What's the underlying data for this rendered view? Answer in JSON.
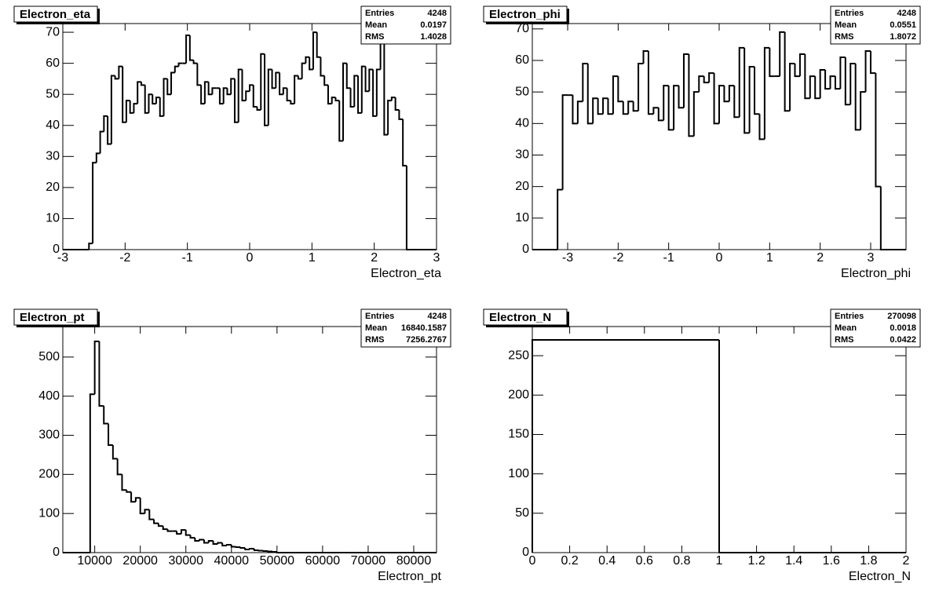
{
  "chart_data": [
    {
      "type": "histogram",
      "title": "Electron_eta",
      "xlabel": "Electron_eta",
      "color": "#000000",
      "stats": [
        {
          "label": "Entries",
          "value": 4248
        },
        {
          "label": "Mean",
          "value": 0.0197
        },
        {
          "label": "RMS",
          "value": 1.4028
        }
      ],
      "bins": [
        -3,
        -2.94,
        -2.88,
        -2.82,
        -2.76,
        -2.7,
        -2.64,
        -2.58,
        -2.52,
        -2.46,
        -2.4,
        -2.34,
        -2.28,
        -2.22,
        -2.16,
        -2.1,
        -2.04,
        -1.98,
        -1.92,
        -1.86,
        -1.8,
        -1.74,
        -1.68,
        -1.62,
        -1.56,
        -1.5,
        -1.44,
        -1.38,
        -1.32,
        -1.26,
        -1.2,
        -1.14,
        -1.08,
        -1.02,
        -0.96,
        -0.9,
        -0.84,
        -0.78,
        -0.72,
        -0.66,
        -0.6,
        -0.54,
        -0.48,
        -0.42,
        -0.36,
        -0.3,
        -0.24,
        -0.18,
        -0.12,
        -0.06,
        0,
        0.06,
        0.12,
        0.18,
        0.24,
        0.3,
        0.36,
        0.42,
        0.48,
        0.54,
        0.6,
        0.66,
        0.72,
        0.78,
        0.84,
        0.9,
        0.96,
        1.02,
        1.08,
        1.14,
        1.2,
        1.26,
        1.32,
        1.38,
        1.44,
        1.5,
        1.56,
        1.62,
        1.68,
        1.74,
        1.8,
        1.86,
        1.92,
        1.98,
        2.04,
        2.1,
        2.16,
        2.22,
        2.28,
        2.34,
        2.4,
        2.46,
        2.52,
        2.58,
        2.64,
        2.7,
        2.76,
        2.82,
        2.88,
        2.94,
        3
      ],
      "values": [
        0,
        0,
        0,
        0,
        0,
        0,
        0,
        2,
        28,
        31,
        38,
        43,
        34,
        56,
        55,
        59,
        41,
        48,
        44,
        47,
        54,
        53,
        44,
        50,
        47,
        49,
        43,
        55,
        50,
        57,
        59,
        60,
        60,
        69,
        61,
        60,
        53,
        47,
        54,
        50,
        52,
        52,
        47,
        52,
        50,
        55,
        41,
        58,
        48,
        51,
        53,
        46,
        45,
        63,
        40,
        58,
        52,
        57,
        50,
        52,
        48,
        47,
        56,
        55,
        60,
        62,
        58,
        70,
        62,
        56,
        53,
        47,
        49,
        48,
        35,
        60,
        52,
        46,
        56,
        44,
        59,
        51,
        58,
        43,
        58,
        68,
        37,
        48,
        49,
        45,
        42,
        27,
        0,
        0,
        0,
        0,
        0,
        0,
        0,
        0
      ],
      "xlim": [
        -3,
        3
      ],
      "ylim": [
        0,
        72.8
      ],
      "xticks": [
        -3,
        -2,
        -1,
        0,
        1,
        2,
        3
      ],
      "yticks": [
        0,
        10,
        20,
        30,
        40,
        50,
        60,
        70
      ]
    },
    {
      "type": "histogram",
      "title": "Electron_phi",
      "xlabel": "Electron_phi",
      "color": "#000000",
      "stats": [
        {
          "label": "Entries",
          "value": 4248
        },
        {
          "label": "Mean",
          "value": 0.0551
        },
        {
          "label": "RMS",
          "value": 1.8072
        }
      ],
      "bins": [
        -3.7,
        -3.6,
        -3.5,
        -3.4,
        -3.3,
        -3.2,
        -3.1,
        -3,
        -2.9,
        -2.8,
        -2.7,
        -2.6,
        -2.5,
        -2.4,
        -2.3,
        -2.2,
        -2.1,
        -2,
        -1.9,
        -1.8,
        -1.7,
        -1.6,
        -1.5,
        -1.4,
        -1.3,
        -1.2,
        -1.1,
        -1,
        -0.9,
        -0.8,
        -0.7,
        -0.6,
        -0.5,
        -0.4,
        -0.3,
        -0.2,
        -0.1,
        0,
        0.1,
        0.2,
        0.3,
        0.4,
        0.5,
        0.6,
        0.7,
        0.8,
        0.9,
        1,
        1.1,
        1.2,
        1.3,
        1.4,
        1.5,
        1.6,
        1.7,
        1.8,
        1.9,
        2,
        2.1,
        2.2,
        2.3,
        2.4,
        2.5,
        2.6,
        2.7,
        2.8,
        2.9,
        3,
        3.1,
        3.2,
        3.3,
        3.4,
        3.5,
        3.6,
        3.7
      ],
      "values": [
        0,
        0,
        0,
        0,
        0,
        19,
        49,
        49,
        40,
        47,
        59,
        40,
        48,
        43,
        48,
        43,
        55,
        47,
        43,
        47,
        44,
        59,
        63,
        43,
        45,
        41,
        52,
        38,
        52,
        45,
        62,
        36,
        50,
        55,
        53,
        56,
        40,
        52,
        47,
        52,
        42,
        64,
        37,
        58,
        43,
        35,
        64,
        55,
        55,
        69,
        44,
        59,
        55,
        62,
        48,
        55,
        48,
        57,
        51,
        55,
        51,
        61,
        46,
        59,
        38,
        50,
        63,
        56,
        20,
        0,
        0,
        0,
        0,
        0
      ],
      "xlim": [
        -3.7,
        3.7
      ],
      "ylim": [
        0,
        71.7
      ],
      "xticks": [
        -3,
        -2,
        -1,
        0,
        1,
        2,
        3
      ],
      "yticks": [
        0,
        10,
        20,
        30,
        40,
        50,
        60,
        70
      ]
    },
    {
      "type": "histogram",
      "title": "Electron_pt",
      "xlabel": "Electron_pt",
      "color": "#000000",
      "stats": [
        {
          "label": "Entries",
          "value": 4248
        },
        {
          "label": "Mean",
          "value": 16840.1587
        },
        {
          "label": "RMS",
          "value": 7256.2767
        }
      ],
      "bins": [
        3000,
        4000,
        5000,
        6000,
        7000,
        8000,
        9000,
        10000,
        11000,
        12000,
        13000,
        14000,
        15000,
        16000,
        17000,
        18000,
        19000,
        20000,
        21000,
        22000,
        23000,
        24000,
        25000,
        26000,
        27000,
        28000,
        29000,
        30000,
        31000,
        32000,
        33000,
        34000,
        35000,
        36000,
        37000,
        38000,
        39000,
        40000,
        41000,
        42000,
        43000,
        44000,
        45000,
        46000,
        47000,
        48000,
        49000,
        50000,
        51000,
        52000,
        53000,
        54000,
        55000,
        56000,
        57000,
        58000,
        59000,
        60000,
        61000,
        62000,
        63000,
        64000,
        65000,
        66000,
        67000,
        68000,
        69000,
        70000,
        71000,
        72000,
        73000,
        74000,
        75000,
        76000,
        77000,
        78000,
        79000,
        80000,
        81000,
        82000,
        83000,
        84000,
        85000
      ],
      "values": [
        0,
        0,
        0,
        0,
        0,
        0,
        405,
        540,
        375,
        330,
        275,
        240,
        200,
        160,
        155,
        130,
        140,
        100,
        110,
        85,
        75,
        68,
        60,
        55,
        55,
        48,
        58,
        45,
        38,
        30,
        33,
        25,
        30,
        22,
        25,
        18,
        20,
        15,
        14,
        12,
        8,
        10,
        6,
        5,
        4,
        3,
        2,
        0,
        0,
        0,
        0,
        0,
        0,
        0,
        0,
        0,
        0,
        0,
        0,
        0,
        0,
        0,
        0,
        0,
        0,
        0,
        0,
        0,
        0,
        0,
        0,
        0,
        0,
        0,
        0,
        0,
        0,
        0,
        0,
        0,
        0,
        0
      ],
      "xlim": [
        3000,
        85000
      ],
      "ylim": [
        0,
        578
      ],
      "xticks": [
        10000,
        20000,
        30000,
        40000,
        50000,
        60000,
        70000,
        80000
      ],
      "yticks": [
        0,
        100,
        200,
        300,
        400,
        500
      ]
    },
    {
      "type": "histogram",
      "title": "Electron_N",
      "xlabel": "Electron_N",
      "color": "#000000",
      "stats": [
        {
          "label": "Entries",
          "value": 270098
        },
        {
          "label": "Mean",
          "value": 0.0018
        },
        {
          "label": "RMS",
          "value": 0.0422
        }
      ],
      "bins": [
        0,
        1,
        2
      ],
      "values": [
        270,
        0
      ],
      "xlim": [
        0,
        2
      ],
      "ylim": [
        0,
        287
      ],
      "xticks": [
        0,
        0.2,
        0.4,
        0.6,
        0.8,
        1,
        1.2,
        1.4,
        1.6,
        1.8,
        2
      ],
      "yticks": [
        0,
        50,
        100,
        150,
        200,
        250
      ]
    }
  ]
}
